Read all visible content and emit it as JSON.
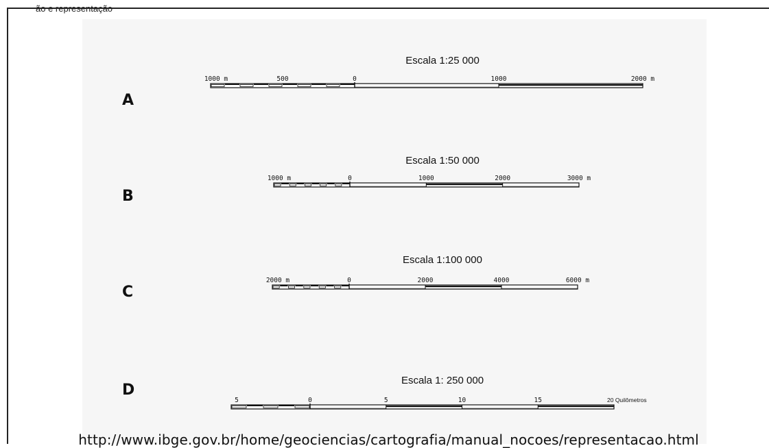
{
  "header": {
    "caption": "ão e representação"
  },
  "footer": {
    "source_url": "http://www.ibge.gov.br/home/geociencias/cartografia/manual_nocoes/representacao.html"
  },
  "scales": [
    {
      "letter": "A",
      "title": "Escala 1:25 000",
      "left_labels": [
        "1000 m",
        "500",
        "0"
      ],
      "right_labels": [
        "1000",
        "2000 m"
      ],
      "left_extent": 1000,
      "right_extent": 2000,
      "left_subdivisions": 10,
      "right_major_step": 1000
    },
    {
      "letter": "B",
      "title": "Escala  1:50 000",
      "left_labels": [
        "1000 m",
        "0"
      ],
      "right_labels": [
        "1000",
        "2000",
        "3000 m"
      ],
      "left_extent": 1000,
      "right_extent": 3000,
      "left_subdivisions": 10,
      "right_major_step": 1000
    },
    {
      "letter": "C",
      "title": "Escala 1:100 000",
      "left_labels": [
        "2000 m",
        "0"
      ],
      "right_labels": [
        "2000",
        "4000",
        "6000 m"
      ],
      "left_extent": 2000,
      "right_extent": 6000,
      "left_subdivisions": 10,
      "right_major_step": 2000
    },
    {
      "letter": "D",
      "title": "Escala 1: 250 000",
      "left_labels": [
        "5",
        "0"
      ],
      "right_labels": [
        "5",
        "10",
        "15",
        "20 Quilômetros"
      ],
      "left_extent": 5,
      "right_extent": 20,
      "left_subdivisions": 5,
      "right_major_step": 5
    }
  ],
  "colors": {
    "ink": "#111111",
    "panel": "#f6f6f6",
    "frame": "#222222"
  }
}
